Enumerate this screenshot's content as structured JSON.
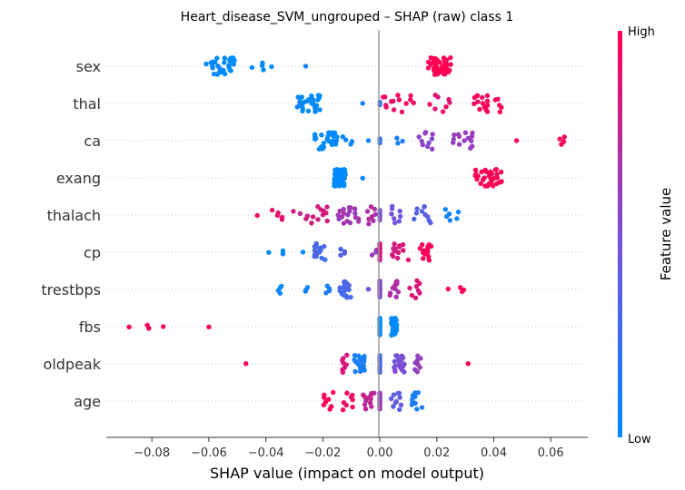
{
  "chart_data": {
    "type": "scatter",
    "title": "Heart_disease_SVM_ungrouped – SHAP (raw) class 1",
    "xlabel": "SHAP value (impact on model output)",
    "xlim": [
      -0.096,
      0.073
    ],
    "xticks": [
      {
        "value": -0.08,
        "label": "−0.08"
      },
      {
        "value": -0.06,
        "label": "−0.06"
      },
      {
        "value": -0.04,
        "label": "−0.04"
      },
      {
        "value": -0.02,
        "label": "−0.02"
      },
      {
        "value": 0.0,
        "label": "0.00"
      },
      {
        "value": 0.02,
        "label": "0.02"
      },
      {
        "value": 0.04,
        "label": "0.04"
      },
      {
        "value": 0.06,
        "label": "0.06"
      }
    ],
    "colorbar": {
      "title": "Feature value",
      "high_label": "High",
      "low_label": "Low",
      "low_color": "#008bfb",
      "high_color": "#ff0052"
    },
    "features": [
      {
        "name": "sex",
        "clusters": [
          {
            "x": -0.056,
            "spread": 0.005,
            "n": 30,
            "color": 0.0
          },
          {
            "x": -0.043,
            "spread": 0.003,
            "n": 4,
            "color": 0.0
          },
          {
            "x": -0.038,
            "spread": 0.0,
            "n": 1,
            "color": 0.0
          },
          {
            "x": -0.026,
            "spread": 0.0,
            "n": 1,
            "color": 0.0
          },
          {
            "x": 0.021,
            "spread": 0.004,
            "n": 45,
            "color": 1.0
          }
        ]
      },
      {
        "name": "thal",
        "clusters": [
          {
            "x": -0.025,
            "spread": 0.004,
            "n": 32,
            "color": 0.0
          },
          {
            "x": -0.006,
            "spread": 0.0,
            "n": 1,
            "color": 0.1
          },
          {
            "x": 0.0,
            "spread": 0.0,
            "n": 2,
            "color": 0.2
          },
          {
            "x": 0.008,
            "spread": 0.007,
            "n": 14,
            "color": 0.95
          },
          {
            "x": 0.021,
            "spread": 0.004,
            "n": 8,
            "color": 0.9
          },
          {
            "x": 0.038,
            "spread": 0.005,
            "n": 18,
            "color": 0.97
          }
        ]
      },
      {
        "name": "ca",
        "clusters": [
          {
            "x": -0.019,
            "spread": 0.004,
            "n": 30,
            "color": 0.0
          },
          {
            "x": -0.011,
            "spread": 0.003,
            "n": 4,
            "color": 0.05
          },
          {
            "x": -0.004,
            "spread": 0.0,
            "n": 1,
            "color": 0.1
          },
          {
            "x": 0.0,
            "spread": 0.0,
            "n": 3,
            "color": 0.15
          },
          {
            "x": 0.007,
            "spread": 0.001,
            "n": 3,
            "color": 0.1
          },
          {
            "x": 0.016,
            "spread": 0.003,
            "n": 10,
            "color": 0.55
          },
          {
            "x": 0.029,
            "spread": 0.004,
            "n": 14,
            "color": 0.6
          },
          {
            "x": 0.048,
            "spread": 0.0,
            "n": 1,
            "color": 1.0
          },
          {
            "x": 0.064,
            "spread": 0.001,
            "n": 4,
            "color": 1.0
          }
        ]
      },
      {
        "name": "exang",
        "clusters": [
          {
            "x": -0.014,
            "spread": 0.002,
            "n": 75,
            "color": 0.0
          },
          {
            "x": -0.006,
            "spread": 0.0,
            "n": 1,
            "color": 0.0
          },
          {
            "x": 0.038,
            "spread": 0.005,
            "n": 30,
            "color": 1.0
          }
        ]
      },
      {
        "name": "thalach",
        "clusters": [
          {
            "x": -0.043,
            "spread": 0.0,
            "n": 1,
            "color": 0.95
          },
          {
            "x": -0.036,
            "spread": 0.003,
            "n": 5,
            "color": 0.9
          },
          {
            "x": -0.028,
            "spread": 0.003,
            "n": 4,
            "color": 0.8
          },
          {
            "x": -0.021,
            "spread": 0.003,
            "n": 10,
            "color": 0.85
          },
          {
            "x": -0.011,
            "spread": 0.004,
            "n": 18,
            "color": 0.65
          },
          {
            "x": -0.003,
            "spread": 0.002,
            "n": 8,
            "color": 0.7
          },
          {
            "x": 0.0,
            "spread": 0.0,
            "n": 5,
            "color": 0.5
          },
          {
            "x": 0.006,
            "spread": 0.002,
            "n": 8,
            "color": 0.45
          },
          {
            "x": 0.015,
            "spread": 0.003,
            "n": 10,
            "color": 0.35
          },
          {
            "x": 0.025,
            "spread": 0.004,
            "n": 6,
            "color": 0.05
          }
        ]
      },
      {
        "name": "cp",
        "clusters": [
          {
            "x": -0.039,
            "spread": 0.0,
            "n": 1,
            "color": 0.0
          },
          {
            "x": -0.034,
            "spread": 0.0,
            "n": 2,
            "color": 0.0
          },
          {
            "x": -0.027,
            "spread": 0.0,
            "n": 1,
            "color": 0.0
          },
          {
            "x": -0.021,
            "spread": 0.002,
            "n": 16,
            "color": 0.3
          },
          {
            "x": -0.013,
            "spread": 0.001,
            "n": 4,
            "color": 0.35
          },
          {
            "x": -0.002,
            "spread": 0.001,
            "n": 3,
            "color": 0.6
          },
          {
            "x": 0.0,
            "spread": 0.0,
            "n": 12,
            "color": 0.85
          },
          {
            "x": 0.007,
            "spread": 0.003,
            "n": 14,
            "color": 0.85
          },
          {
            "x": 0.016,
            "spread": 0.002,
            "n": 14,
            "color": 1.0
          }
        ]
      },
      {
        "name": "trestbps",
        "clusters": [
          {
            "x": -0.034,
            "spread": 0.002,
            "n": 4,
            "color": 0.0
          },
          {
            "x": -0.026,
            "spread": 0.001,
            "n": 3,
            "color": 0.05
          },
          {
            "x": -0.019,
            "spread": 0.002,
            "n": 4,
            "color": 0.1
          },
          {
            "x": -0.012,
            "spread": 0.002,
            "n": 18,
            "color": 0.3
          },
          {
            "x": -0.004,
            "spread": 0.0,
            "n": 1,
            "color": 0.4
          },
          {
            "x": 0.0,
            "spread": 0.0,
            "n": 14,
            "color": 0.55
          },
          {
            "x": 0.005,
            "spread": 0.002,
            "n": 10,
            "color": 0.7
          },
          {
            "x": 0.012,
            "spread": 0.002,
            "n": 8,
            "color": 0.85
          },
          {
            "x": 0.024,
            "spread": 0.0,
            "n": 1,
            "color": 1.0
          },
          {
            "x": 0.029,
            "spread": 0.001,
            "n": 3,
            "color": 1.0
          }
        ]
      },
      {
        "name": "fbs",
        "clusters": [
          {
            "x": -0.088,
            "spread": 0.0,
            "n": 1,
            "color": 1.0
          },
          {
            "x": -0.082,
            "spread": 0.001,
            "n": 2,
            "color": 1.0
          },
          {
            "x": -0.076,
            "spread": 0.0,
            "n": 1,
            "color": 1.0
          },
          {
            "x": -0.06,
            "spread": 0.0,
            "n": 1,
            "color": 1.0
          },
          {
            "x": 0.0,
            "spread": 0.0,
            "n": 20,
            "color": 0.0
          },
          {
            "x": 0.005,
            "spread": 0.001,
            "n": 35,
            "color": 0.0
          }
        ]
      },
      {
        "name": "oldpeak",
        "clusters": [
          {
            "x": -0.047,
            "spread": 0.0,
            "n": 1,
            "color": 1.0
          },
          {
            "x": -0.013,
            "spread": 0.002,
            "n": 8,
            "color": 0.85
          },
          {
            "x": -0.007,
            "spread": 0.002,
            "n": 22,
            "color": 0.1
          },
          {
            "x": 0.0,
            "spread": 0.0,
            "n": 8,
            "color": 0.3
          },
          {
            "x": 0.007,
            "spread": 0.002,
            "n": 20,
            "color": 0.5
          },
          {
            "x": 0.013,
            "spread": 0.002,
            "n": 8,
            "color": 0.6
          },
          {
            "x": 0.031,
            "spread": 0.0,
            "n": 1,
            "color": 1.0
          }
        ]
      },
      {
        "name": "age",
        "clusters": [
          {
            "x": -0.018,
            "spread": 0.002,
            "n": 8,
            "color": 1.0
          },
          {
            "x": -0.011,
            "spread": 0.002,
            "n": 8,
            "color": 0.95
          },
          {
            "x": -0.004,
            "spread": 0.002,
            "n": 12,
            "color": 0.75
          },
          {
            "x": 0.0,
            "spread": 0.0,
            "n": 14,
            "color": 0.6
          },
          {
            "x": 0.006,
            "spread": 0.002,
            "n": 10,
            "color": 0.4
          },
          {
            "x": 0.013,
            "spread": 0.002,
            "n": 10,
            "color": 0.1
          }
        ]
      }
    ]
  }
}
